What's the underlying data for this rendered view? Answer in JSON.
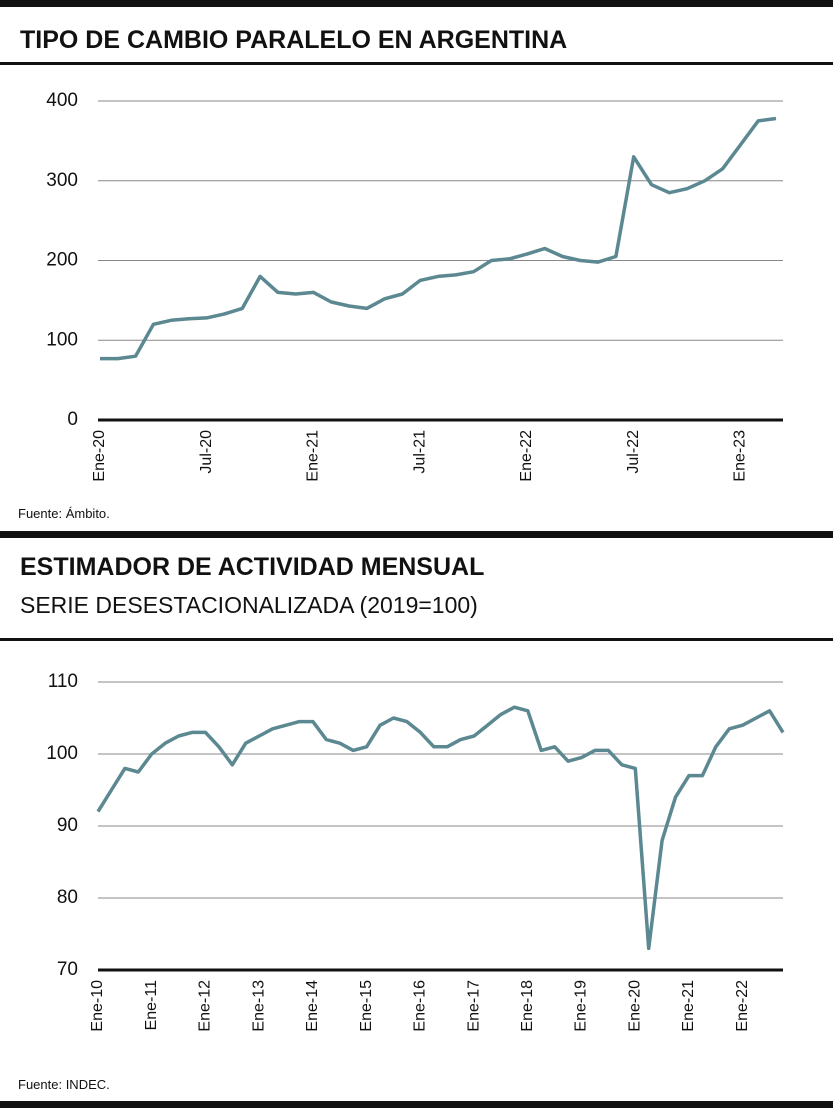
{
  "chart_data": [
    {
      "type": "line",
      "title": "TIPO DE CAMBIO PARALELO EN ARGENTINA",
      "source": "Fuente: Ámbito.",
      "categories": [
        "Ene-20",
        null,
        null,
        null,
        null,
        null,
        "Jul-20",
        null,
        null,
        null,
        null,
        null,
        "Ene-21",
        null,
        null,
        null,
        null,
        null,
        "Jul-21",
        null,
        null,
        null,
        null,
        null,
        "Ene-22",
        null,
        null,
        null,
        null,
        null,
        "Jul-22",
        null,
        null,
        null,
        null,
        null,
        "Ene-23",
        null,
        null
      ],
      "series": [
        {
          "name": "Tipo de cambio paralelo",
          "color": "#5b8891",
          "values": [
            77,
            77,
            80,
            120,
            125,
            127,
            128,
            133,
            140,
            180,
            160,
            158,
            160,
            148,
            143,
            140,
            152,
            158,
            175,
            180,
            182,
            186,
            200,
            202,
            208,
            215,
            205,
            200,
            198,
            205,
            330,
            295,
            285,
            290,
            300,
            315,
            345,
            375,
            378
          ]
        }
      ],
      "ylim": [
        0,
        400
      ],
      "yticks": [
        0,
        100,
        200,
        300,
        400
      ],
      "grid": true
    },
    {
      "type": "line",
      "title": "ESTIMADOR DE ACTIVIDAD MENSUAL",
      "subtitle": "SERIE DESESTACIONALIZADA (2019=100)",
      "source": "Fuente: INDEC.",
      "categories": [
        "Ene-10",
        null,
        null,
        null,
        "Ene-11",
        null,
        null,
        null,
        "Ene-12",
        null,
        null,
        null,
        "Ene-13",
        null,
        null,
        null,
        "Ene-14",
        null,
        null,
        null,
        "Ene-15",
        null,
        null,
        null,
        "Ene-16",
        null,
        null,
        null,
        "Ene-17",
        null,
        null,
        null,
        "Ene-18",
        null,
        null,
        null,
        "Ene-19",
        null,
        null,
        null,
        "Ene-20",
        null,
        null,
        null,
        "Ene-21",
        null,
        null,
        null,
        "Ene-22",
        null,
        null,
        null
      ],
      "series": [
        {
          "name": "Estimador de actividad",
          "color": "#5b8891",
          "values": [
            92,
            95,
            98,
            97.5,
            100,
            101.5,
            102.5,
            103,
            103,
            101,
            98.5,
            101.5,
            102.5,
            103.5,
            104,
            104.5,
            104.5,
            102,
            101.5,
            100.5,
            101,
            104,
            105,
            104.5,
            103,
            101,
            101,
            102,
            102.5,
            104,
            105.5,
            106.5,
            106,
            100.5,
            101,
            99,
            99.5,
            100.5,
            100.5,
            98.5,
            98,
            73,
            88,
            94,
            97,
            97,
            101,
            103.5,
            104,
            105,
            106,
            103
          ]
        }
      ],
      "ylim": [
        70,
        110
      ],
      "yticks": [
        70,
        80,
        90,
        100,
        110
      ],
      "grid": true
    }
  ]
}
